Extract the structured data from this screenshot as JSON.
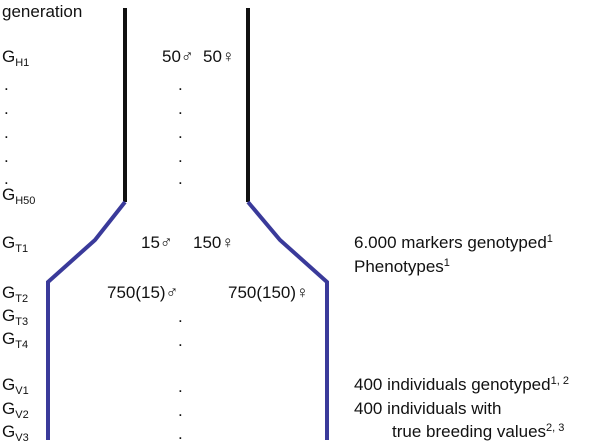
{
  "header": {
    "label": "generation"
  },
  "generations": [
    {
      "letter": "G",
      "sub": "H1"
    },
    {
      "letter": "G",
      "sub": "H50"
    },
    {
      "letter": "G",
      "sub": "T1"
    },
    {
      "letter": "G",
      "sub": "T2"
    },
    {
      "letter": "G",
      "sub": "T3"
    },
    {
      "letter": "G",
      "sub": "T4"
    },
    {
      "letter": "G",
      "sub": "V1"
    },
    {
      "letter": "G",
      "sub": "V2"
    },
    {
      "letter": "G",
      "sub": "V3"
    }
  ],
  "population": {
    "h1_males": "50♂",
    "h1_females": "50♀",
    "t1_males": "15♂",
    "t1_females": "150♀",
    "t2_males": "750(15)♂",
    "t2_females": "750(150)♀"
  },
  "annotations": {
    "markers": {
      "text": "6.000 markers genotyped",
      "sup": "1"
    },
    "phenotypes": {
      "text": "Phenotypes",
      "sup": "1"
    },
    "genotyped": {
      "text": "400 individuals genotyped",
      "sup": "1, 2"
    },
    "with_line1": {
      "text": "400 individuals with"
    },
    "with_line2": {
      "text": "true breeding values",
      "sup": "2, 3"
    }
  },
  "ellipsis": ".",
  "colors": {
    "historic": "#111111",
    "recent": "#3a3a9a"
  }
}
